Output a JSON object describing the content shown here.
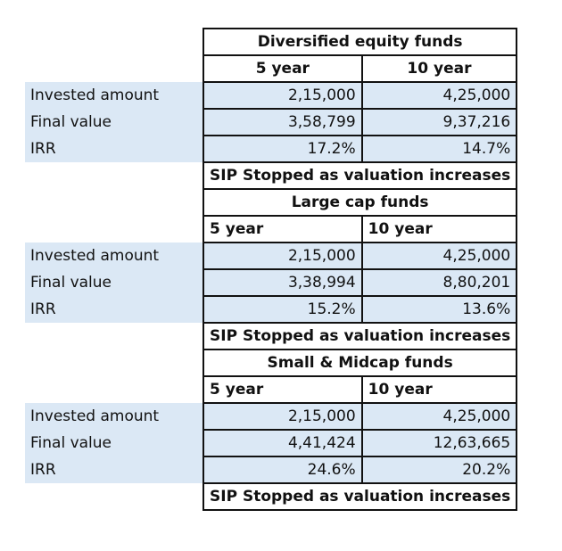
{
  "row_labels": {
    "invested": "Invested amount",
    "final": "Final value",
    "irr": "IRR"
  },
  "sections": [
    {
      "title": "Diversified equity funds",
      "col_a": "5 year",
      "col_b": "10 year",
      "invested": [
        "2,15,000",
        "4,25,000"
      ],
      "final": [
        "3,58,799",
        "9,37,216"
      ],
      "irr": [
        "17.2%",
        "14.7%"
      ],
      "note": "SIP Stopped as valuation increases"
    },
    {
      "title": "Large cap funds",
      "col_a": "5 year",
      "col_b": "10 year",
      "invested": [
        "2,15,000",
        "4,25,000"
      ],
      "final": [
        "3,38,994",
        "8,80,201"
      ],
      "irr": [
        "15.2%",
        "13.6%"
      ],
      "note": "SIP Stopped as valuation increases"
    },
    {
      "title": "Small & Midcap funds",
      "col_a": "5 year",
      "col_b": "10 year",
      "invested": [
        "2,15,000",
        "4,25,000"
      ],
      "final": [
        "4,41,424",
        "12,63,665"
      ],
      "irr": [
        "24.6%",
        "20.2%"
      ],
      "note": "SIP Stopped as valuation increases"
    }
  ]
}
